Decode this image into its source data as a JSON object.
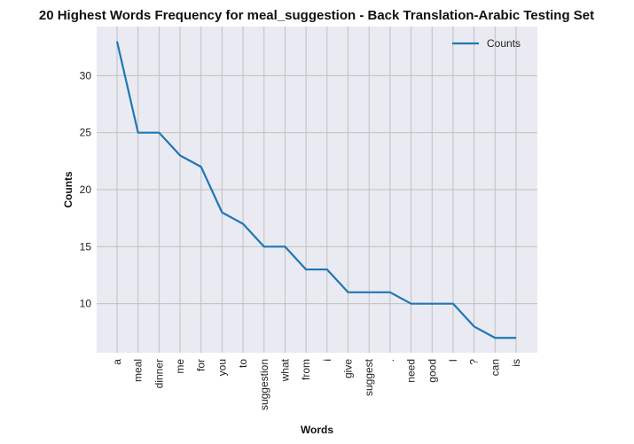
{
  "chart_data": {
    "type": "line",
    "title": "20 Highest Words Frequency for meal_suggestion - Back Translation-Arabic Testing Set",
    "xlabel": "Words",
    "ylabel": "Counts",
    "categories": [
      "a",
      "meal",
      "dinner",
      "me",
      "for",
      "you",
      "to",
      "suggestion",
      "what",
      "from",
      "i",
      "give",
      "suggest",
      ".",
      "need",
      "good",
      "I",
      "?",
      "can",
      "is"
    ],
    "series": [
      {
        "name": "Counts",
        "values": [
          33,
          25,
          25,
          23,
          22,
          18,
          17,
          15,
          15,
          13,
          13,
          11,
          11,
          11,
          10,
          10,
          10,
          8,
          7,
          7
        ]
      }
    ],
    "yticks": [
      10,
      15,
      20,
      25,
      30
    ],
    "ylim": [
      5.7,
      34.3
    ],
    "grid": true,
    "legend_position": "top-right",
    "colors": {
      "line": "#1f77b4",
      "plot_bg": "#eaeaf2",
      "grid": "#c0c0c0"
    }
  }
}
